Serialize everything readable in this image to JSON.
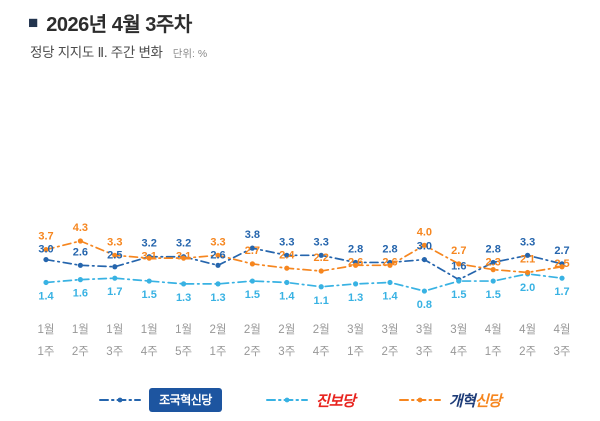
{
  "header": {
    "bullet": "■",
    "title": "2026년 4월 3주차",
    "subtitle": "정당 지지도 Ⅱ. 주간 변화",
    "unit": "단위: %"
  },
  "chart_data": {
    "type": "line",
    "title": "정당 지지도 Ⅱ. 주간 변화",
    "unit": "%",
    "grid": false,
    "legend_position": "bottom",
    "ylim": [
      0.5,
      4.6
    ],
    "x_labels_line1": [
      "1월",
      "1월",
      "1월",
      "1월",
      "1월",
      "2월",
      "2월",
      "2월",
      "2월",
      "3월",
      "3월",
      "3월",
      "3월",
      "4월",
      "4월",
      "4월"
    ],
    "x_labels_line2": [
      "1주",
      "2주",
      "3주",
      "4주",
      "5주",
      "1주",
      "2주",
      "3주",
      "4주",
      "1주",
      "2주",
      "3주",
      "4주",
      "1주",
      "2주",
      "3주"
    ],
    "series": [
      {
        "name": "조국혁신당",
        "color": "#2565ad",
        "values": [
          3.0,
          2.6,
          2.5,
          3.2,
          3.2,
          2.6,
          3.8,
          3.3,
          3.3,
          2.8,
          2.8,
          3.0,
          1.6,
          2.8,
          3.3,
          2.7
        ]
      },
      {
        "name": "진보당",
        "color": "#38b2e3",
        "values": [
          1.4,
          1.6,
          1.7,
          1.5,
          1.3,
          1.3,
          1.5,
          1.4,
          1.1,
          1.3,
          1.4,
          0.8,
          1.5,
          1.5,
          2.0,
          1.7
        ]
      },
      {
        "name": "개혁신당",
        "color": "#f6861f",
        "values": [
          3.7,
          4.3,
          3.3,
          3.1,
          3.1,
          3.3,
          2.7,
          2.4,
          2.2,
          2.6,
          2.6,
          4.0,
          2.7,
          2.3,
          2.1,
          2.5
        ]
      }
    ]
  },
  "legend": {
    "items": [
      {
        "id": "joguk",
        "label": "조국혁신당",
        "style": "badge",
        "line_color": "#2565ad",
        "badge_bg": "#1d55a0",
        "text_color": "#ffffff"
      },
      {
        "id": "jinbo",
        "label": "진보당",
        "style": "italic",
        "line_color": "#38b2e3",
        "text_color": "#e8241f"
      },
      {
        "id": "gaehyuk",
        "style": "italic-parts",
        "line_color": "#f6861f",
        "label_parts": [
          {
            "text": "개혁",
            "color": "#1e3c78"
          },
          {
            "text": "신당",
            "color": "#f6861f"
          }
        ]
      }
    ]
  }
}
